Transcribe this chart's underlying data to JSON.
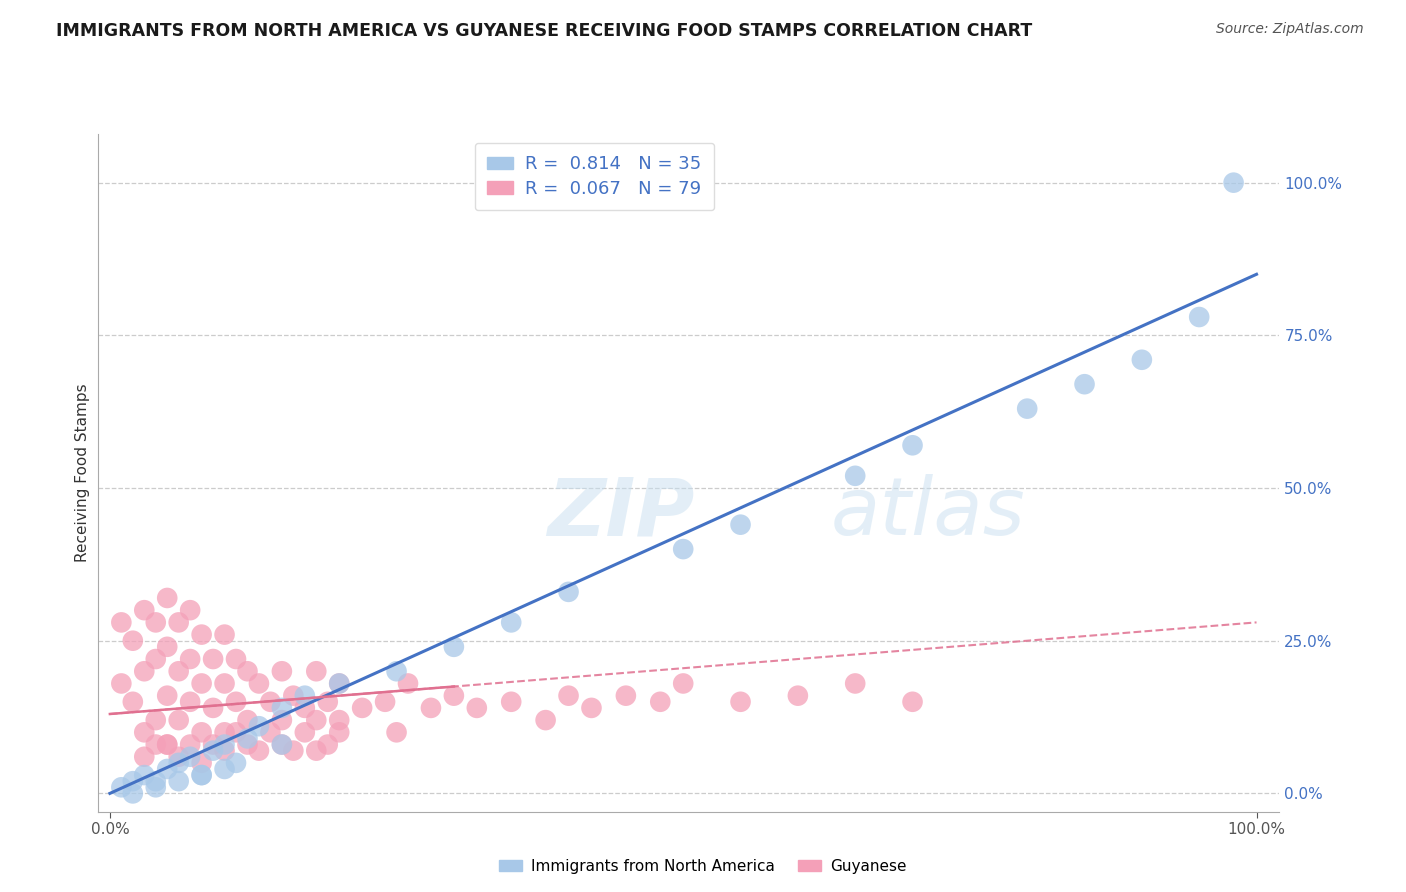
{
  "title": "IMMIGRANTS FROM NORTH AMERICA VS GUYANESE RECEIVING FOOD STAMPS CORRELATION CHART",
  "source": "Source: ZipAtlas.com",
  "ylabel": "Receiving Food Stamps",
  "watermark": "ZIPatlas",
  "xlim": [
    -1.0,
    102.0
  ],
  "ylim": [
    -3.0,
    108.0
  ],
  "x_tick_labels": [
    "0.0%",
    "100.0%"
  ],
  "x_tick_positions": [
    0,
    100
  ],
  "y_tick_labels_right": [
    "0.0%",
    "25.0%",
    "50.0%",
    "75.0%",
    "100.0%"
  ],
  "y_tick_values_right": [
    0.0,
    25.0,
    50.0,
    75.0,
    100.0
  ],
  "legend_r1": "R =  0.814   N = 35",
  "legend_r2": "R =  0.067   N = 79",
  "blue_color": "#a8c8e8",
  "pink_color": "#f4a0b8",
  "line_blue": "#4472c4",
  "line_pink": "#e07090",
  "legend_text_color": "#4472c4",
  "series1_label": "Immigrants from North America",
  "series2_label": "Guyanese",
  "background_color": "#ffffff",
  "grid_color": "#cccccc",
  "blue_scatter_x": [
    1,
    2,
    3,
    4,
    5,
    6,
    7,
    8,
    9,
    10,
    11,
    12,
    13,
    15,
    17,
    20,
    25,
    30,
    35,
    40,
    50,
    55,
    65,
    70,
    80,
    85,
    90,
    95,
    98,
    2,
    4,
    6,
    8,
    10,
    15
  ],
  "blue_scatter_y": [
    1,
    2,
    3,
    2,
    4,
    5,
    6,
    3,
    7,
    8,
    5,
    9,
    11,
    14,
    16,
    18,
    20,
    24,
    28,
    33,
    40,
    44,
    52,
    57,
    63,
    67,
    71,
    78,
    100,
    0,
    1,
    2,
    3,
    4,
    8
  ],
  "pink_scatter_x": [
    1,
    1,
    2,
    2,
    3,
    3,
    3,
    4,
    4,
    4,
    5,
    5,
    5,
    5,
    6,
    6,
    6,
    7,
    7,
    7,
    8,
    8,
    8,
    9,
    9,
    10,
    10,
    10,
    11,
    11,
    12,
    12,
    13,
    14,
    15,
    15,
    16,
    17,
    18,
    18,
    19,
    20,
    20,
    22,
    24,
    26,
    28,
    30,
    32,
    35,
    38,
    40,
    42,
    45,
    48,
    50,
    55,
    60,
    65,
    70,
    3,
    4,
    5,
    6,
    7,
    8,
    9,
    10,
    11,
    12,
    13,
    14,
    15,
    16,
    17,
    18,
    19,
    20,
    25
  ],
  "pink_scatter_y": [
    18,
    28,
    15,
    25,
    10,
    20,
    30,
    12,
    22,
    28,
    8,
    16,
    24,
    32,
    12,
    20,
    28,
    15,
    22,
    30,
    10,
    18,
    26,
    14,
    22,
    10,
    18,
    26,
    15,
    22,
    12,
    20,
    18,
    15,
    12,
    20,
    16,
    14,
    12,
    20,
    15,
    12,
    18,
    14,
    15,
    18,
    14,
    16,
    14,
    15,
    12,
    16,
    14,
    16,
    15,
    18,
    15,
    16,
    18,
    15,
    6,
    8,
    8,
    6,
    8,
    5,
    8,
    7,
    10,
    8,
    7,
    10,
    8,
    7,
    10,
    7,
    8,
    10,
    10
  ],
  "blue_line_x": [
    0,
    100
  ],
  "blue_line_y": [
    0,
    85
  ],
  "pink_line_x": [
    0,
    100
  ],
  "pink_line_y": [
    13,
    28
  ]
}
